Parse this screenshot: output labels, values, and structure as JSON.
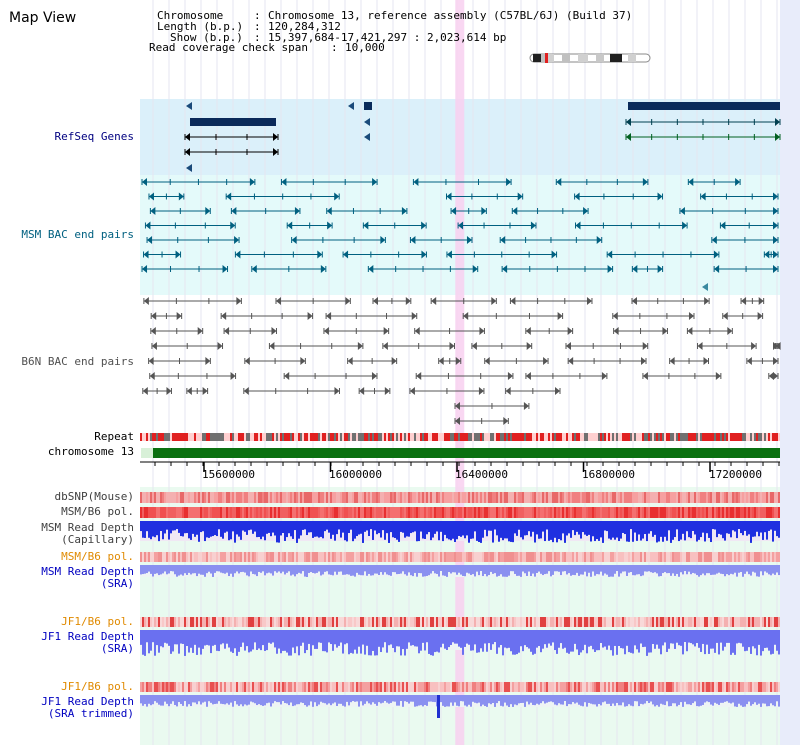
{
  "page": {
    "title": "Map View"
  },
  "info": {
    "chromosome_label": "Chromosome",
    "chromosome_value": "Chromosome 13, reference assembly (C57BL/6J) (Build 37)",
    "length_label": "Length (b.p.)",
    "length_value": "120,284,312",
    "show_label": "Show (b.p.)",
    "show_value": "15,397,684-17,421,297 : 2,023,614 bp",
    "coverage_label": "Read coverage check span",
    "coverage_value": "10,000"
  },
  "view": {
    "start": 15397684,
    "end": 17421297,
    "highlight_start": 16397684,
    "highlight_end": 16422000
  },
  "axis": {
    "ticks": [
      15600000,
      16000000,
      16400000,
      16800000,
      17200000
    ],
    "tick_labels": [
      "15600000",
      "16000000",
      "16400000",
      "16800000",
      "17200000"
    ]
  },
  "tracks": {
    "refseq": {
      "label": "RefSeq Genes",
      "color": "#000080"
    },
    "msm_bac": {
      "label": "MSM BAC end pairs",
      "color": "#006080"
    },
    "b6n_bac": {
      "label": "B6N BAC end pairs",
      "color": "#505050"
    },
    "repeat": {
      "label": "Repeat"
    },
    "chromosome": {
      "label": "chromosome 13"
    },
    "dbsnp": {
      "label": "dbSNP(Mouse)"
    },
    "msm_b6_pol": {
      "label": "MSM/B6 pol."
    },
    "msm_read_depth_cap": {
      "label_line1": "MSM Read Depth",
      "label_line2": "(Capillary)"
    },
    "msm_b6_pol2": {
      "label": "MSM/B6 pol."
    },
    "msm_read_depth_sra": {
      "label_line1": "MSM Read Depth",
      "label_line2": "(SRA)"
    },
    "jf1_b6_pol": {
      "label": "JF1/B6 pol."
    },
    "jf1_read_depth_sra": {
      "label_line1": "JF1 Read Depth",
      "label_line2": "(SRA)"
    },
    "jf1_b6_pol2": {
      "label": "JF1/B6 pol."
    },
    "jf1_read_depth_trim": {
      "label_line1": "JF1 Read Depth",
      "label_line2": "(SRA trimmed)"
    }
  },
  "colors": {
    "refseq_bg": "#dbf0fa",
    "bac_bg": "#e4fafa",
    "b6n_bg": "#ffffff",
    "lower_bg": "#eafaf0",
    "right_strip": "#e8ecfa",
    "highlight": "#f8d0f0"
  }
}
